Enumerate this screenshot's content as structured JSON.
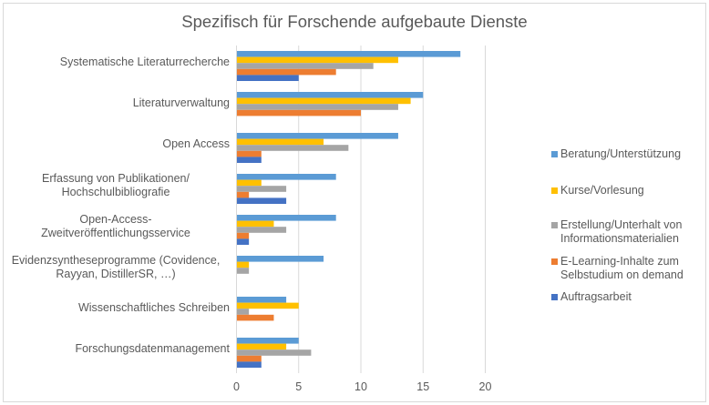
{
  "chart_data": {
    "type": "bar",
    "orientation": "horizontal",
    "title": "Spezifisch für Forschende aufgebaute Dienste",
    "xlabel": "",
    "ylabel": "",
    "xlim": [
      0,
      20
    ],
    "xticks": [
      0,
      5,
      10,
      15,
      20
    ],
    "grid": true,
    "legend_position": "right",
    "categories": [
      [
        "Systematische Literaturrecherche"
      ],
      [
        "Literaturverwaltung"
      ],
      [
        "Open Access"
      ],
      [
        "Erfassung von Publikationen/",
        "Hochschulbibliografie"
      ],
      [
        "Open-Access-",
        "Zweitveröffentlichungsservice"
      ],
      [
        "Evidenzsyntheseprogramme (Covidence,",
        "Rayyan, DistillerSR, …)"
      ],
      [
        "Wissenschaftliches Schreiben"
      ],
      [
        "Forschungsdatenmanagement"
      ]
    ],
    "series": [
      {
        "name": "Beratung/Unterstützung",
        "legend_lines": [
          "Beratung/Unterstützung"
        ],
        "color": "#5B9BD5",
        "values": [
          18,
          15,
          13,
          8,
          8,
          7,
          4,
          5
        ]
      },
      {
        "name": "Kurse/Vorlesung",
        "legend_lines": [
          "Kurse/Vorlesung"
        ],
        "color": "#FFC000",
        "values": [
          13,
          14,
          7,
          2,
          3,
          1,
          5,
          4
        ]
      },
      {
        "name": "Erstellung/Unterhalt von Informationsmaterialien",
        "legend_lines": [
          "Erstellung/Unterhalt von",
          "Informationsmaterialien"
        ],
        "color": "#A5A5A5",
        "values": [
          11,
          13,
          9,
          4,
          4,
          1,
          1,
          6
        ]
      },
      {
        "name": "E-Learning-Inhalte zum Selbstudium on demand",
        "legend_lines": [
          "E-Learning-Inhalte zum",
          "Selbstudium on demand"
        ],
        "color": "#ED7D31",
        "values": [
          8,
          10,
          2,
          1,
          1,
          0,
          3,
          2
        ]
      },
      {
        "name": "Auftragsarbeit",
        "legend_lines": [
          "Auftragsarbeit"
        ],
        "color": "#4472C4",
        "values": [
          5,
          0,
          2,
          4,
          1,
          0,
          0,
          2
        ]
      }
    ]
  }
}
